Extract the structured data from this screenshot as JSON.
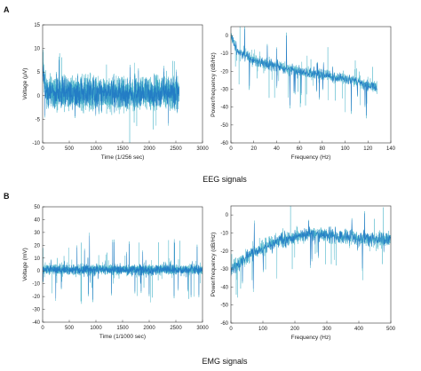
{
  "colors": {
    "signal": "#1f77c4",
    "signal_light": "#46b3c8",
    "frame": "#333333"
  },
  "panel_labels": {
    "a": "A",
    "b": "B"
  },
  "captions": {
    "eeg": "EEG signals",
    "emg": "EMG signals"
  },
  "chart_data": [
    {
      "id": "eeg-time",
      "type": "line",
      "xlabel": "Time (1/256 sec)",
      "ylabel": "Voltage (μV)",
      "xlim": [
        0,
        3000
      ],
      "ylim": [
        -10,
        15
      ],
      "xticks": [
        0,
        500,
        1000,
        1500,
        2000,
        2500,
        3000
      ],
      "yticks": [
        -10,
        -5,
        0,
        5,
        10,
        15
      ],
      "signal": {
        "n": 2560,
        "x_end": 2560,
        "center": 0.5,
        "noise_amp": 3.2,
        "spike_amp": 8,
        "start_level": 7,
        "seed": 11
      },
      "grid": false
    },
    {
      "id": "eeg-psd",
      "type": "line",
      "xlabel": "Frequency (Hz)",
      "ylabel": "Power/frequency (dB/Hz)",
      "xlim": [
        0,
        140
      ],
      "ylim": [
        -60,
        5
      ],
      "xticks": [
        0,
        20,
        40,
        60,
        80,
        100,
        120,
        140
      ],
      "yticks": [
        -60,
        -50,
        -40,
        -30,
        -20,
        -10,
        0
      ],
      "signal": {
        "n": 1280,
        "x_end": 128,
        "trend": [
          [
            0,
            0
          ],
          [
            5,
            -8
          ],
          [
            20,
            -14
          ],
          [
            60,
            -20
          ],
          [
            100,
            -24
          ],
          [
            128,
            -29
          ]
        ],
        "noise_amp": 3,
        "spike_amp": 18,
        "seed": 23
      },
      "grid": false
    },
    {
      "id": "emg-time",
      "type": "line",
      "xlabel": "Time (1/1000 sec)",
      "ylabel": "Voltage (mV)",
      "xlim": [
        0,
        3000
      ],
      "ylim": [
        -40,
        50
      ],
      "xticks": [
        0,
        500,
        1000,
        1500,
        2000,
        2500,
        3000
      ],
      "yticks": [
        -40,
        -30,
        -20,
        -10,
        0,
        10,
        20,
        30,
        40,
        50
      ],
      "signal": {
        "n": 3000,
        "x_end": 3000,
        "center": 1,
        "noise_amp": 3.5,
        "spike_amp": 25,
        "seed": 37
      },
      "grid": false
    },
    {
      "id": "emg-psd",
      "type": "line",
      "xlabel": "Frequency (Hz)",
      "ylabel": "Power/frequency (dB/Hz)",
      "xlim": [
        0,
        500
      ],
      "ylim": [
        -60,
        5
      ],
      "xticks": [
        0,
        100,
        200,
        300,
        400,
        500
      ],
      "yticks": [
        -60,
        -50,
        -40,
        -30,
        -20,
        -10,
        0
      ],
      "signal": {
        "n": 1500,
        "x_end": 500,
        "trend": [
          [
            0,
            -30
          ],
          [
            60,
            -22
          ],
          [
            150,
            -14
          ],
          [
            250,
            -10
          ],
          [
            350,
            -12
          ],
          [
            450,
            -14
          ],
          [
            500,
            -13
          ]
        ],
        "noise_amp": 4,
        "spike_amp": 20,
        "seed": 53
      },
      "grid": false
    }
  ]
}
